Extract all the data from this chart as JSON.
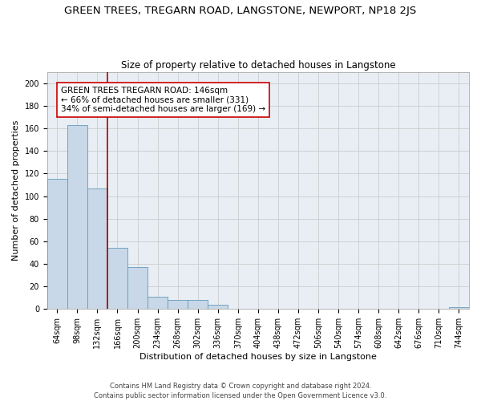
{
  "title": "GREEN TREES, TREGARN ROAD, LANGSTONE, NEWPORT, NP18 2JS",
  "subtitle": "Size of property relative to detached houses in Langstone",
  "xlabel": "Distribution of detached houses by size in Langstone",
  "ylabel": "Number of detached properties",
  "categories": [
    "64sqm",
    "98sqm",
    "132sqm",
    "166sqm",
    "200sqm",
    "234sqm",
    "268sqm",
    "302sqm",
    "336sqm",
    "370sqm",
    "404sqm",
    "438sqm",
    "472sqm",
    "506sqm",
    "540sqm",
    "574sqm",
    "608sqm",
    "642sqm",
    "676sqm",
    "710sqm",
    "744sqm"
  ],
  "values": [
    115,
    163,
    107,
    54,
    37,
    11,
    8,
    8,
    4,
    0,
    0,
    0,
    0,
    0,
    0,
    0,
    0,
    0,
    0,
    0,
    2
  ],
  "bar_color": "#c8d8e8",
  "bar_edge_color": "#6699bb",
  "vline_x": 2.5,
  "vline_color": "#aa0000",
  "annotation_text": "GREEN TREES TREGARN ROAD: 146sqm\n← 66% of detached houses are smaller (331)\n34% of semi-detached houses are larger (169) →",
  "annotation_box_color": "#ffffff",
  "annotation_box_edge": "#cc0000",
  "ylim": [
    0,
    210
  ],
  "yticks": [
    0,
    20,
    40,
    60,
    80,
    100,
    120,
    140,
    160,
    180,
    200
  ],
  "grid_color": "#cccccc",
  "background_color": "#e8eef4",
  "footer": "Contains HM Land Registry data © Crown copyright and database right 2024.\nContains public sector information licensed under the Open Government Licence v3.0.",
  "title_fontsize": 9.5,
  "subtitle_fontsize": 8.5,
  "xlabel_fontsize": 8.0,
  "ylabel_fontsize": 8.0,
  "tick_fontsize": 7.0,
  "footer_fontsize": 6.0,
  "annot_fontsize": 7.5
}
